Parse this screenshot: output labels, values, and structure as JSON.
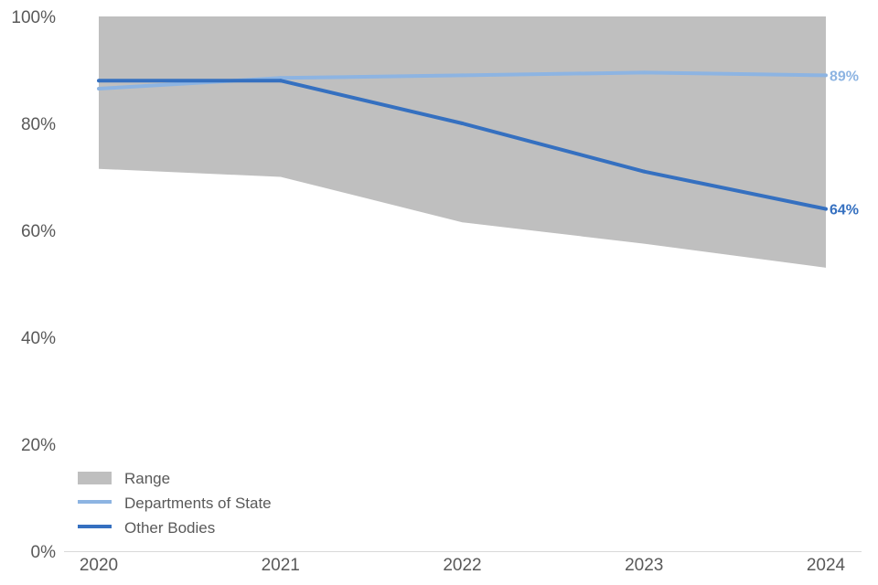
{
  "chart_data": {
    "type": "line",
    "x": [
      "2020",
      "2021",
      "2022",
      "2023",
      "2024"
    ],
    "ylim": [
      0,
      100
    ],
    "yticks": [
      0,
      20,
      40,
      60,
      80,
      100
    ],
    "ytick_labels": [
      "0%",
      "20%",
      "40%",
      "60%",
      "80%",
      "100%"
    ],
    "grid": false,
    "legend_position": "bottom-left",
    "range": {
      "name": "Range",
      "color": "#bfbfbf",
      "lower": [
        71.5,
        70,
        61.5,
        57.5,
        53
      ],
      "upper": [
        100,
        100,
        100,
        100,
        100
      ]
    },
    "series": [
      {
        "name": "Departments of State",
        "color": "#8db4e2",
        "values": [
          86.5,
          88.5,
          89,
          89.5,
          89
        ],
        "end_label": "89%"
      },
      {
        "name": "Other Bodies",
        "color": "#3570c0",
        "values": [
          88,
          88,
          80,
          71,
          64
        ],
        "end_label": "64%"
      }
    ]
  }
}
